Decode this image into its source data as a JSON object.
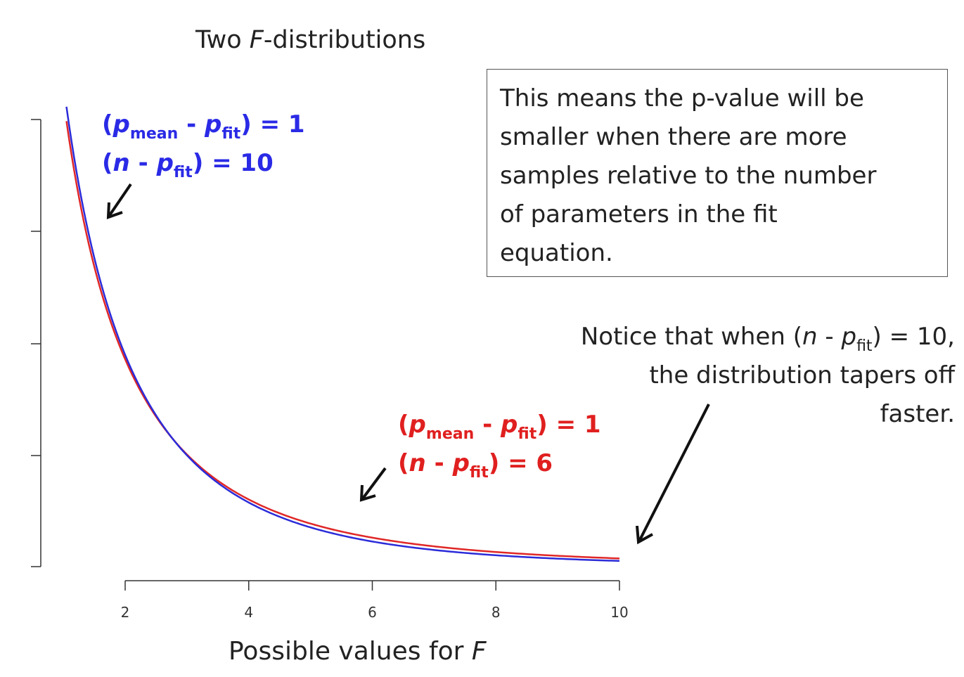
{
  "chart_data": {
    "type": "line",
    "title_parts": [
      "Two ",
      "F",
      "-distributions"
    ],
    "xlabel_parts": [
      "Possible values for ",
      "F"
    ],
    "xlim": [
      2,
      10
    ],
    "x_ticks": [
      2,
      4,
      6,
      8,
      10
    ],
    "y_axis_ticks_shown": 5,
    "series": [
      {
        "color": "#2b2bd9",
        "df1": 1,
        "df2": 10,
        "x": [
          1.05,
          1.5,
          2,
          2.5,
          3,
          3.5,
          4,
          5,
          6,
          7,
          8,
          9,
          10
        ],
        "y": [
          0.239,
          0.16,
          0.11,
          0.08,
          0.06,
          0.046,
          0.036,
          0.023,
          0.016,
          0.011,
          0.008,
          0.006,
          0.005
        ]
      },
      {
        "color": "#e02727",
        "df1": 1,
        "df2": 6,
        "x": [
          1.05,
          1.5,
          2,
          2.5,
          3,
          3.5,
          4,
          5,
          6,
          7,
          8,
          9,
          10
        ],
        "y": [
          0.207,
          0.146,
          0.104,
          0.079,
          0.062,
          0.049,
          0.04,
          0.028,
          0.021,
          0.016,
          0.013,
          0.01,
          0.009
        ]
      }
    ]
  },
  "labels": {
    "blue_line1": {
      "open": "(",
      "p": "p",
      "sub1": "mean",
      "mid": " - ",
      "p2": "p",
      "sub2": "fit",
      "close": ") = 1"
    },
    "blue_line2": {
      "open": "(",
      "n": "n",
      "mid": " - ",
      "p": "p",
      "sub": "fit",
      "close": ") = 10"
    },
    "red_line1": {
      "open": "(",
      "p": "p",
      "sub1": "mean",
      "mid": " - ",
      "p2": "p",
      "sub2": "fit",
      "close": ") = 1"
    },
    "red_line2": {
      "open": "(",
      "n": "n",
      "mid": " - ",
      "p": "p",
      "sub": "fit",
      "close": ") = 6"
    }
  },
  "infobox": {
    "lines": [
      "This means the p-value will be",
      "smaller when there are more",
      "samples relative to the number",
      "of parameters in the fit",
      "equation."
    ]
  },
  "notice": {
    "line1": {
      "pre": "Notice that when (",
      "n": "n",
      "mid": " - ",
      "p": "p",
      "sub": "fit",
      "post": ") = 10,"
    },
    "line2": "the distribution tapers off",
    "line3": "faster."
  }
}
